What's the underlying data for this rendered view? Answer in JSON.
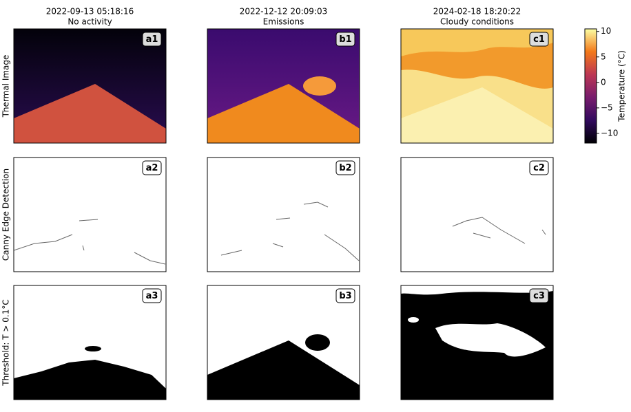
{
  "columns": [
    {
      "date": "2022-09-13 05:18:16",
      "condition": "No activity"
    },
    {
      "date": "2022-12-12 20:09:03",
      "condition": "Emissions"
    },
    {
      "date": "2024-02-18 18:20:22",
      "condition": "Cloudy conditions"
    }
  ],
  "rows": [
    "Thermal Image",
    "Canny Edge Detection",
    "Threshold: T > 0.1°C"
  ],
  "panels": [
    [
      "a1",
      "b1",
      "c1"
    ],
    [
      "a2",
      "b2",
      "c2"
    ],
    [
      "a3",
      "b3",
      "c3"
    ]
  ],
  "colorbar": {
    "label": "Temperature (°C)",
    "lim": [
      -11.9,
      10.5
    ],
    "ticks": [
      {
        "value": -10,
        "label": "−10"
      },
      {
        "value": -5,
        "label": "−5"
      },
      0,
      5,
      10
    ]
  }
}
